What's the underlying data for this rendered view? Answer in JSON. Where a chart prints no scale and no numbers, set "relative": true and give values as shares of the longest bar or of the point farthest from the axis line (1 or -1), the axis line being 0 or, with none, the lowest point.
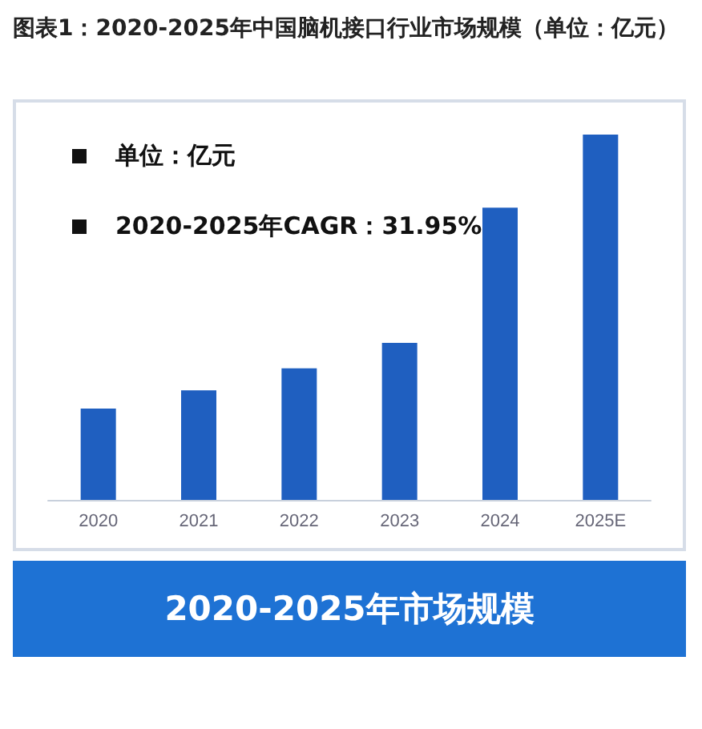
{
  "chart_data": {
    "type": "bar",
    "title": "图表1：2020-2025年中国脑机接口行业市场规模（单位：亿元）",
    "annotations": [
      "单位：亿元",
      "2020-2025年CAGR：31.95%"
    ],
    "xlabel": "2020-2025年市场规模",
    "categories": [
      "2020",
      "2021",
      "2022",
      "2023",
      "2024",
      "2025E"
    ],
    "values": [
      0.25,
      0.3,
      0.36,
      0.43,
      0.8,
      1
    ],
    "color": "#1f5fc0",
    "relative": true
  }
}
